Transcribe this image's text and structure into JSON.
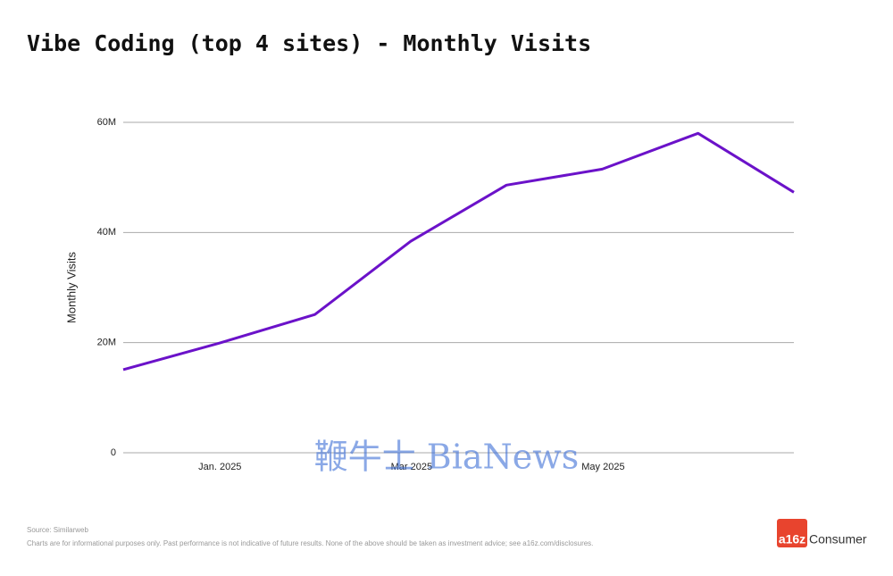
{
  "chart_data": {
    "type": "line",
    "title": "Vibe Coding (top 4 sites) - Monthly Visits",
    "y_label": "Monthly Visits",
    "categories": [
      null,
      "Jan. 2025",
      null,
      "Mar 2025",
      null,
      "May 2025",
      null,
      null
    ],
    "series": [
      {
        "name": "Monthly Visits",
        "color": "#6b12c9",
        "values": [
          15.1,
          19.9,
          25.1,
          38.4,
          48.6,
          51.5,
          58.0,
          47.3
        ]
      }
    ],
    "ylim": [
      0,
      60
    ],
    "yticks": [
      0,
      {
        "value": 20,
        "label": "20M"
      },
      {
        "value": 40,
        "label": "40M"
      },
      {
        "value": 60,
        "label": "60M"
      }
    ],
    "grid": true,
    "watermark": "鞭牛士 BiaNews"
  },
  "footer": {
    "source": "Source: Similarweb",
    "disclaimer": "Charts are for informational purposes only. Past performance is not indicative of future results. None of the above should be taken as investment advice; see a16z.com/disclosures.",
    "logo": "a16z",
    "brand": "Consumer"
  }
}
